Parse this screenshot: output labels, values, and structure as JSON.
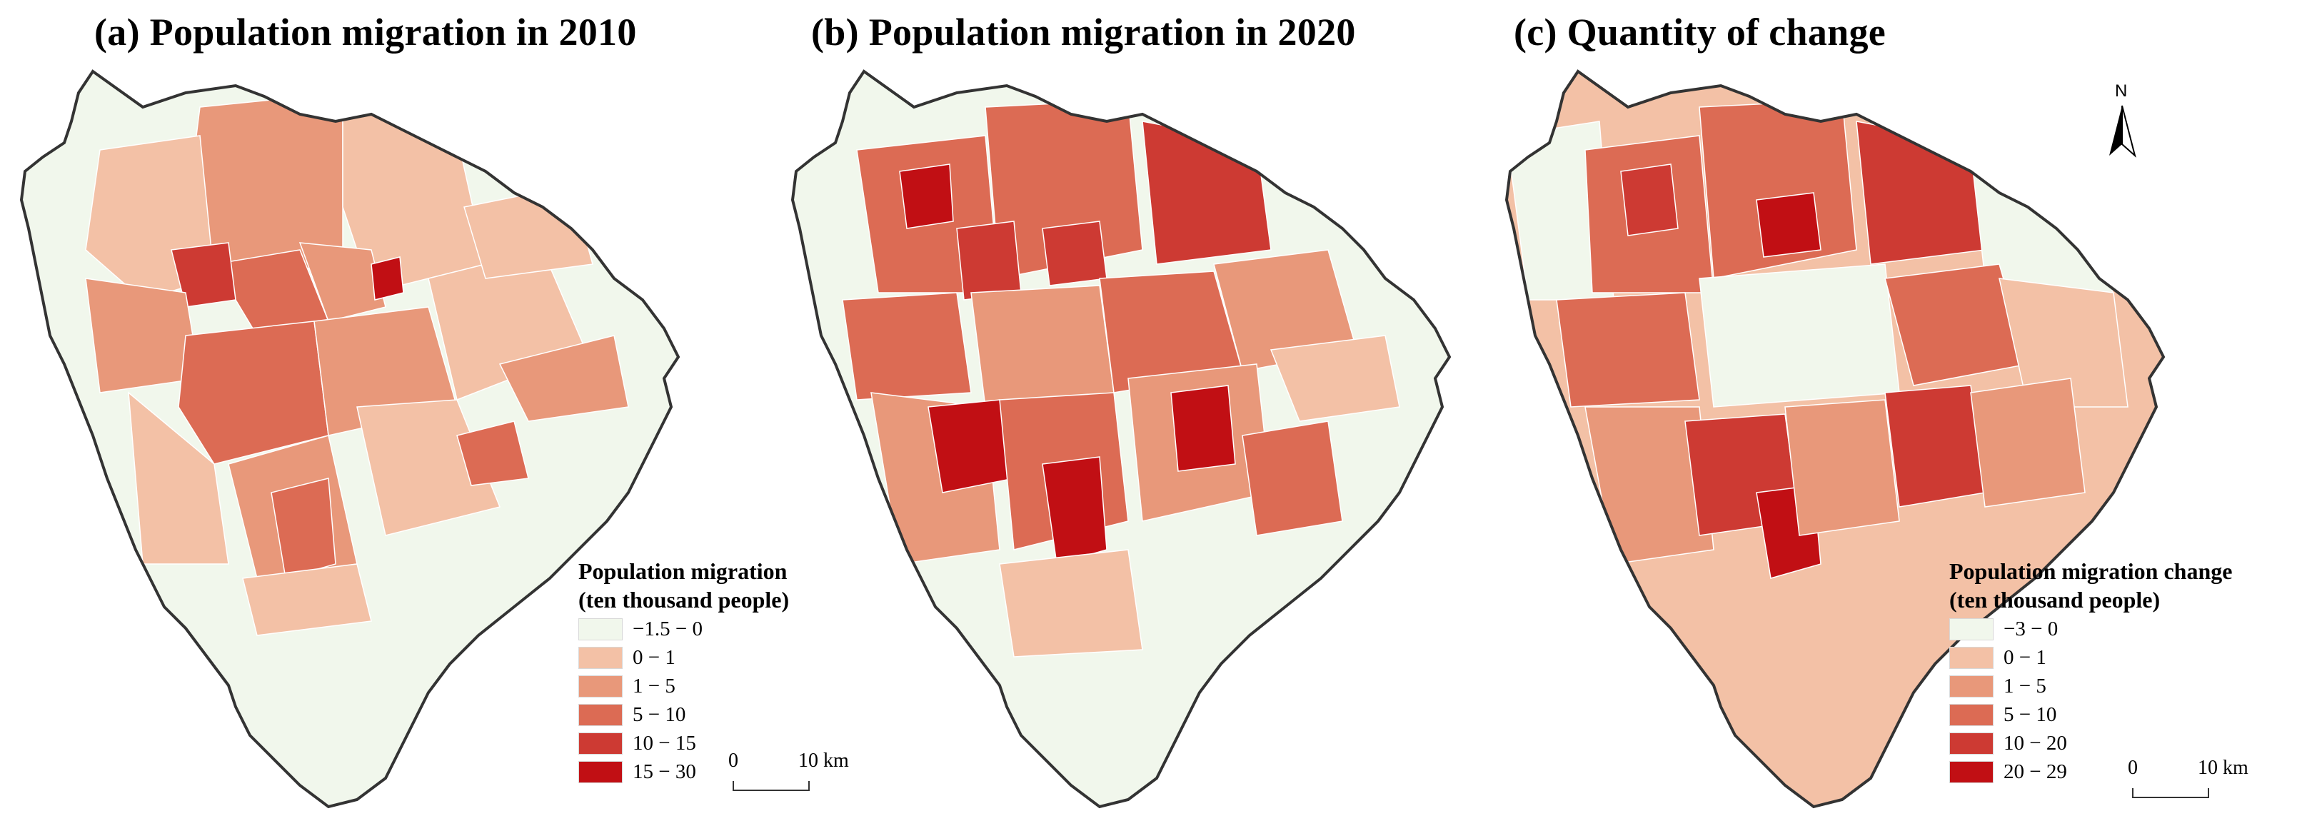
{
  "colors": {
    "c0": "#f1f7ec",
    "c1": "#f3c1a6",
    "c2": "#e8987a",
    "c3": "#dc6b54",
    "c4": "#cd3a33",
    "c5": "#c10f14",
    "outline": "#333333",
    "inner_border": "#7a7a7a"
  },
  "icons": {
    "north_arrow": "north-arrow-icon"
  },
  "panels": [
    {
      "title": "(a) Population migration in 2010",
      "legend": {
        "title_line1": "Population migration",
        "title_line2": "(ten thousand people)",
        "classes": [
          {
            "label": "−1.5 − 0",
            "color": "#f1f7ec"
          },
          {
            "label": "0 − 1",
            "color": "#f3c1a6"
          },
          {
            "label": "1 − 5",
            "color": "#e8987a"
          },
          {
            "label": "5 − 10",
            "color": "#dc6b54"
          },
          {
            "label": "10 − 15",
            "color": "#cd3a33"
          },
          {
            "label": "15 − 30",
            "color": "#c10f14"
          }
        ]
      },
      "scale": {
        "zero": "0",
        "distance": "10 km"
      }
    },
    {
      "title": "(b) Population migration in 2020"
    },
    {
      "title": "(c) Quantity of change",
      "north_label": "N",
      "legend": {
        "title_line1": "Population migration change",
        "title_line2": "(ten thousand people)",
        "classes": [
          {
            "label": "−3 − 0",
            "color": "#f1f7ec"
          },
          {
            "label": "0 − 1",
            "color": "#f3c1a6"
          },
          {
            "label": "1 − 5",
            "color": "#e8987a"
          },
          {
            "label": "5 − 10",
            "color": "#dc6b54"
          },
          {
            "label": "10 − 20",
            "color": "#cd3a33"
          },
          {
            "label": "20 − 29",
            "color": "#c10f14"
          }
        ]
      },
      "scale": {
        "zero": "0",
        "distance": "10 km"
      }
    }
  ]
}
